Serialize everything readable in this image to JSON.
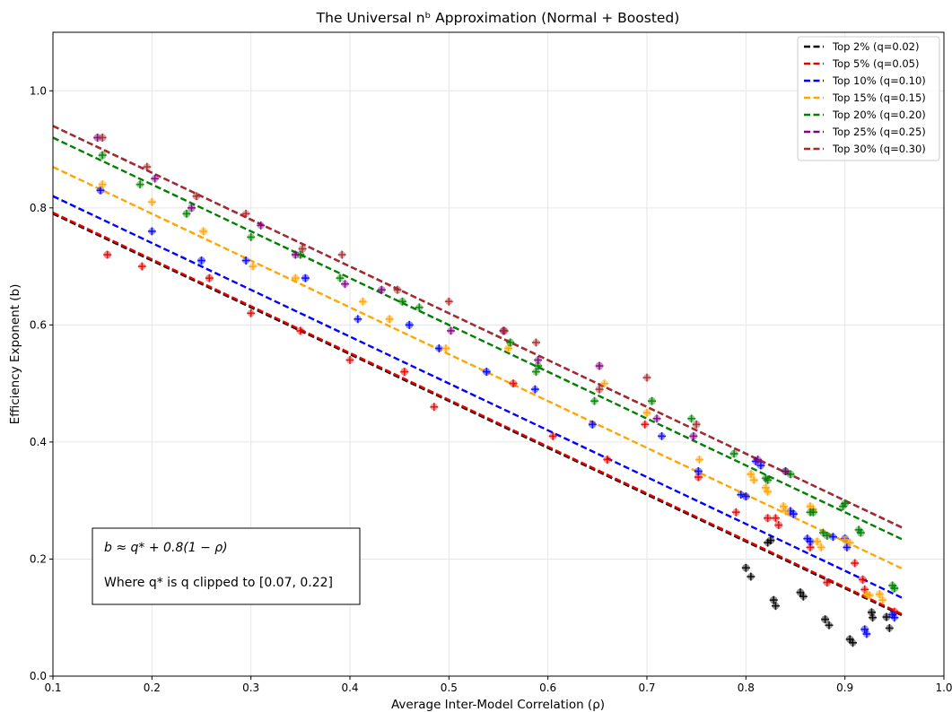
{
  "chart_data": {
    "type": "scatter",
    "title": "The Universal nᵇ Approximation (Normal + Boosted)",
    "xlabel": "Average Inter-Model Correlation (ρ)",
    "ylabel": "Efficiency Exponent (b)",
    "xlim": [
      0.1,
      1.0
    ],
    "ylim": [
      0.0,
      1.1
    ],
    "xticks": [
      "0.1",
      "0.2",
      "0.3",
      "0.4",
      "0.5",
      "0.6",
      "0.7",
      "0.8",
      "0.9",
      "1.0"
    ],
    "yticks": [
      "0.0",
      "0.2",
      "0.4",
      "0.6",
      "0.8",
      "1.0"
    ],
    "grid": true,
    "legend_position": "top-right",
    "annotation": {
      "line1": "b ≈ q* + 0.8(1 − ρ)",
      "line2": "Where q* is q clipped to [0.07, 0.22]"
    },
    "fit_x_range": [
      0.1,
      0.96
    ],
    "series": [
      {
        "name": "Top 2% (q=0.02)",
        "q": 0.02,
        "color": "#000000",
        "fit": [
          [
            0.1,
            0.79
          ],
          [
            0.96,
            0.102
          ]
        ],
        "points": [
          [
            0.8,
            0.185
          ],
          [
            0.805,
            0.17
          ],
          [
            0.825,
            0.232
          ],
          [
            0.822,
            0.228
          ],
          [
            0.828,
            0.13
          ],
          [
            0.83,
            0.12
          ],
          [
            0.855,
            0.143
          ],
          [
            0.858,
            0.136
          ],
          [
            0.88,
            0.097
          ],
          [
            0.884,
            0.087
          ],
          [
            0.905,
            0.063
          ],
          [
            0.908,
            0.057
          ],
          [
            0.927,
            0.109
          ],
          [
            0.928,
            0.1
          ],
          [
            0.942,
            0.101
          ],
          [
            0.945,
            0.082
          ]
        ]
      },
      {
        "name": "Top 5% (q=0.05)",
        "q": 0.05,
        "color": "#e60000",
        "fit": [
          [
            0.1,
            0.792
          ],
          [
            0.96,
            0.104
          ]
        ],
        "points": [
          [
            0.155,
            0.72
          ],
          [
            0.19,
            0.7
          ],
          [
            0.258,
            0.68
          ],
          [
            0.3,
            0.62
          ],
          [
            0.35,
            0.59
          ],
          [
            0.4,
            0.54
          ],
          [
            0.455,
            0.52
          ],
          [
            0.485,
            0.46
          ],
          [
            0.565,
            0.5
          ],
          [
            0.605,
            0.41
          ],
          [
            0.66,
            0.37
          ],
          [
            0.698,
            0.43
          ],
          [
            0.752,
            0.34
          ],
          [
            0.79,
            0.28
          ],
          [
            0.822,
            0.27
          ],
          [
            0.83,
            0.27
          ],
          [
            0.833,
            0.258
          ],
          [
            0.865,
            0.22
          ],
          [
            0.882,
            0.16
          ],
          [
            0.91,
            0.193
          ],
          [
            0.918,
            0.165
          ],
          [
            0.92,
            0.148
          ],
          [
            0.95,
            0.11
          ]
        ]
      },
      {
        "name": "Top 10% (q=0.10)",
        "q": 0.1,
        "color": "#0000ff",
        "fit": [
          [
            0.1,
            0.82
          ],
          [
            0.96,
            0.132
          ]
        ],
        "points": [
          [
            0.148,
            0.83
          ],
          [
            0.2,
            0.76
          ],
          [
            0.25,
            0.71
          ],
          [
            0.295,
            0.71
          ],
          [
            0.355,
            0.68
          ],
          [
            0.408,
            0.61
          ],
          [
            0.46,
            0.6
          ],
          [
            0.49,
            0.56
          ],
          [
            0.538,
            0.52
          ],
          [
            0.587,
            0.49
          ],
          [
            0.645,
            0.43
          ],
          [
            0.715,
            0.41
          ],
          [
            0.752,
            0.35
          ],
          [
            0.795,
            0.31
          ],
          [
            0.8,
            0.307
          ],
          [
            0.81,
            0.367
          ],
          [
            0.815,
            0.36
          ],
          [
            0.845,
            0.282
          ],
          [
            0.848,
            0.277
          ],
          [
            0.862,
            0.235
          ],
          [
            0.865,
            0.23
          ],
          [
            0.888,
            0.238
          ],
          [
            0.9,
            0.235
          ],
          [
            0.902,
            0.22
          ],
          [
            0.92,
            0.08
          ],
          [
            0.922,
            0.072
          ],
          [
            0.948,
            0.105
          ],
          [
            0.95,
            0.1
          ]
        ]
      },
      {
        "name": "Top 15% (q=0.15)",
        "q": 0.15,
        "color": "#ffa500",
        "fit": [
          [
            0.1,
            0.87
          ],
          [
            0.96,
            0.182
          ]
        ],
        "points": [
          [
            0.15,
            0.84
          ],
          [
            0.2,
            0.81
          ],
          [
            0.252,
            0.76
          ],
          [
            0.302,
            0.7
          ],
          [
            0.345,
            0.68
          ],
          [
            0.413,
            0.64
          ],
          [
            0.44,
            0.61
          ],
          [
            0.497,
            0.56
          ],
          [
            0.56,
            0.56
          ],
          [
            0.657,
            0.5
          ],
          [
            0.7,
            0.45
          ],
          [
            0.753,
            0.37
          ],
          [
            0.805,
            0.345
          ],
          [
            0.808,
            0.335
          ],
          [
            0.82,
            0.322
          ],
          [
            0.822,
            0.315
          ],
          [
            0.838,
            0.29
          ],
          [
            0.84,
            0.282
          ],
          [
            0.865,
            0.29
          ],
          [
            0.868,
            0.285
          ],
          [
            0.872,
            0.23
          ],
          [
            0.876,
            0.22
          ],
          [
            0.9,
            0.233
          ],
          [
            0.905,
            0.228
          ],
          [
            0.922,
            0.14
          ],
          [
            0.925,
            0.138
          ],
          [
            0.935,
            0.14
          ],
          [
            0.938,
            0.13
          ]
        ]
      },
      {
        "name": "Top 20% (q=0.20)",
        "q": 0.2,
        "color": "#008000",
        "fit": [
          [
            0.1,
            0.92
          ],
          [
            0.96,
            0.232
          ]
        ],
        "points": [
          [
            0.15,
            0.89
          ],
          [
            0.188,
            0.84
          ],
          [
            0.235,
            0.79
          ],
          [
            0.3,
            0.75
          ],
          [
            0.35,
            0.72
          ],
          [
            0.39,
            0.68
          ],
          [
            0.453,
            0.64
          ],
          [
            0.47,
            0.63
          ],
          [
            0.562,
            0.57
          ],
          [
            0.588,
            0.52
          ],
          [
            0.59,
            0.53
          ],
          [
            0.647,
            0.47
          ],
          [
            0.705,
            0.47
          ],
          [
            0.745,
            0.44
          ],
          [
            0.788,
            0.38
          ],
          [
            0.82,
            0.338
          ],
          [
            0.822,
            0.335
          ],
          [
            0.84,
            0.35
          ],
          [
            0.845,
            0.345
          ],
          [
            0.865,
            0.28
          ],
          [
            0.868,
            0.28
          ],
          [
            0.878,
            0.245
          ],
          [
            0.882,
            0.24
          ],
          [
            0.898,
            0.29
          ],
          [
            0.9,
            0.295
          ],
          [
            0.914,
            0.25
          ],
          [
            0.916,
            0.245
          ],
          [
            0.948,
            0.155
          ],
          [
            0.95,
            0.15
          ]
        ]
      },
      {
        "name": "Top 25% (q=0.25)",
        "q": 0.25,
        "color": "#800080",
        "fit": [
          [
            0.1,
            0.94
          ],
          [
            0.96,
            0.252
          ]
        ],
        "points": [
          [
            0.145,
            0.92
          ],
          [
            0.203,
            0.85
          ],
          [
            0.24,
            0.8
          ],
          [
            0.31,
            0.77
          ],
          [
            0.345,
            0.72
          ],
          [
            0.395,
            0.67
          ],
          [
            0.432,
            0.66
          ],
          [
            0.502,
            0.59
          ],
          [
            0.555,
            0.59
          ],
          [
            0.59,
            0.54
          ],
          [
            0.652,
            0.53
          ],
          [
            0.71,
            0.44
          ],
          [
            0.747,
            0.41
          ],
          [
            0.812,
            0.37
          ],
          [
            0.84,
            0.35
          ]
        ]
      },
      {
        "name": "Top 30% (q=0.30)",
        "q": 0.3,
        "color": "#a52a2a",
        "fit": [
          [
            0.1,
            0.94
          ],
          [
            0.96,
            0.252
          ]
        ],
        "points": [
          [
            0.15,
            0.92
          ],
          [
            0.195,
            0.87
          ],
          [
            0.245,
            0.82
          ],
          [
            0.295,
            0.79
          ],
          [
            0.352,
            0.73
          ],
          [
            0.392,
            0.72
          ],
          [
            0.448,
            0.66
          ],
          [
            0.5,
            0.64
          ],
          [
            0.556,
            0.59
          ],
          [
            0.588,
            0.57
          ],
          [
            0.652,
            0.49
          ],
          [
            0.7,
            0.51
          ],
          [
            0.75,
            0.43
          ]
        ]
      }
    ]
  }
}
